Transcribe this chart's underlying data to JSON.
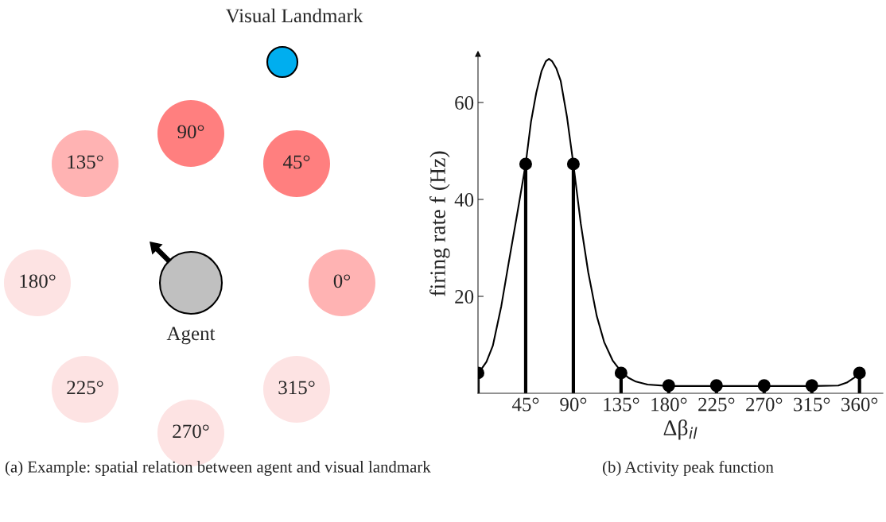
{
  "chart_data": [
    {
      "type": "other",
      "annotations": [
        "Visual Landmark",
        "90°",
        "45°",
        "135°",
        "180°",
        "0°",
        "225°",
        "315°",
        "270°",
        "Agent",
        "(a) Example: spatial relation between agent and visual landmark"
      ]
    },
    {
      "type": "line",
      "xlabel": "Δβ$_{il}$",
      "ylabel": "firing rate f (Hz)",
      "annotations": [
        "(b) Activity peak function"
      ],
      "xlim": [
        0,
        382
      ],
      "ylim": [
        0,
        70
      ],
      "xticks": [
        {
          "value": 45,
          "label": "45°"
        },
        {
          "value": 90,
          "label": "90°"
        },
        {
          "value": 135,
          "label": "135°"
        },
        {
          "value": 180,
          "label": "180°"
        },
        {
          "value": 225,
          "label": "225°"
        },
        {
          "value": 270,
          "label": "270°"
        },
        {
          "value": 315,
          "label": "315°"
        },
        {
          "value": 360,
          "label": "360°"
        }
      ],
      "yticks": [
        20,
        40,
        60
      ],
      "grid": false,
      "legend": false,
      "series": [
        {
          "type": "line",
          "color": "#000000",
          "marker": "none",
          "x": [
            0,
            8,
            14,
            22,
            29,
            37,
            45,
            50,
            55,
            60,
            64,
            67,
            70,
            74,
            78,
            84,
            90,
            97,
            104,
            112,
            119,
            127,
            135,
            142,
            149,
            160,
            180,
            225,
            270,
            315,
            340,
            348,
            355,
            360
          ],
          "values": [
            4,
            6.5,
            9.8,
            18,
            27,
            37,
            47.3,
            56,
            62,
            66.5,
            68.5,
            69,
            68.5,
            67,
            64.5,
            57,
            47.3,
            35,
            25,
            16,
            10.6,
            6.8,
            4.5,
            3.2,
            2.4,
            1.8,
            1.5,
            1.5,
            1.5,
            1.5,
            1.6,
            2.2,
            3.2,
            4
          ]
        },
        {
          "type": "lollipop",
          "color": "#000000",
          "marker": "circle",
          "x": [
            0,
            45,
            90,
            135,
            180,
            225,
            270,
            315,
            360
          ],
          "values": [
            4.2,
            47.3,
            47.3,
            4.2,
            1.6,
            1.6,
            1.6,
            1.6,
            4.2
          ]
        }
      ]
    }
  ]
}
